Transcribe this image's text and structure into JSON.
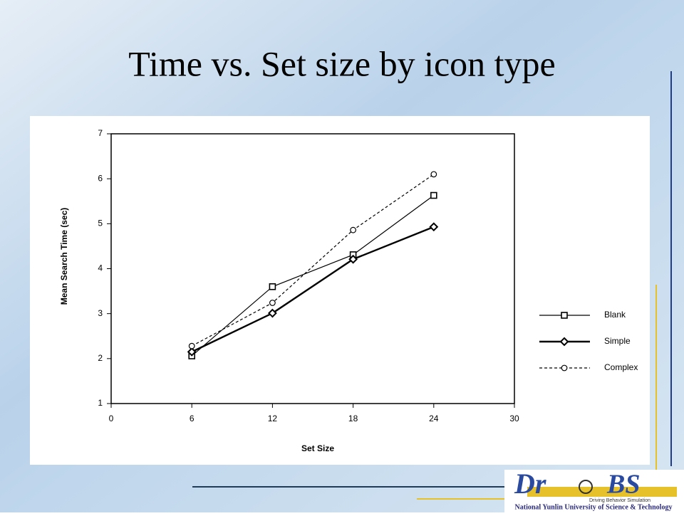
{
  "chart_data": {
    "type": "line",
    "title": "Time vs. Set size by icon type",
    "x_label": "Set Size",
    "y_label": "Mean Search Time (sec)",
    "x": [
      6,
      12,
      18,
      24
    ],
    "series": [
      {
        "name": "Blank",
        "color": "#000000",
        "marker": "square",
        "dash": false,
        "width": 1.2,
        "values": [
          2.06,
          3.6,
          4.31,
          5.63
        ]
      },
      {
        "name": "Simple",
        "color": "#000000",
        "marker": "diamond",
        "dash": false,
        "width": 2.4,
        "values": [
          2.15,
          3.01,
          4.21,
          4.93
        ]
      },
      {
        "name": "Complex",
        "color": "#000000",
        "marker": "circle",
        "dash": true,
        "width": 1.2,
        "values": [
          2.28,
          3.24,
          4.86,
          6.1
        ]
      }
    ],
    "xlim": [
      0,
      30
    ],
    "xticks": [
      0,
      6,
      12,
      18,
      24,
      30
    ],
    "ylim": [
      1,
      7
    ],
    "yticks": [
      1,
      2,
      3,
      4,
      5,
      6,
      7
    ],
    "grid": false,
    "legend": "right"
  },
  "logo": {
    "left": "Dr",
    "right": "BS",
    "tagline": "Driving Behavior Simulation",
    "institution": "National Yunlin University of Science & Technology"
  }
}
